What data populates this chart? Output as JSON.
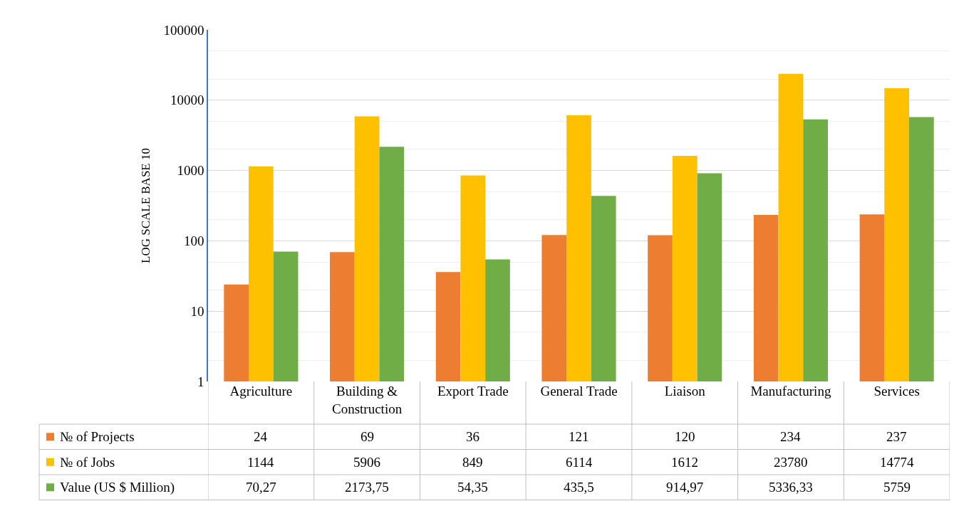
{
  "chart_data": {
    "type": "bar",
    "ylabel": "LOG SCALE BASE 10",
    "log": "y",
    "grid": "y",
    "legend": "bottom left",
    "ylim": [
      1,
      100000
    ],
    "yticks": [
      1,
      10,
      100,
      1000,
      10000,
      100000
    ],
    "categories": [
      "Agriculture",
      "Building & Construction",
      "Export Trade",
      "General Trade",
      "Liaison",
      "Manufacturing",
      "Services"
    ],
    "series": [
      {
        "name": "№ of Projects",
        "color": "#ed7d31",
        "values": [
          24,
          69,
          36,
          121,
          120,
          234,
          237
        ],
        "value_labels": [
          "24",
          "69",
          "36",
          "121",
          "120",
          "234",
          "237"
        ]
      },
      {
        "name": "№ of Jobs",
        "color": "#ffc000",
        "values": [
          1144,
          5906,
          849,
          6114,
          1612,
          23780,
          14774
        ],
        "value_labels": [
          "1144",
          "5906",
          "849",
          "6114",
          "1612",
          "23780",
          "14774"
        ]
      },
      {
        "name": "Value (US $ Million)",
        "color": "#70ad47",
        "values": [
          70.27,
          2173.75,
          54.35,
          435.5,
          914.97,
          5336.33,
          5759
        ],
        "value_labels": [
          "70,27",
          "2173,75",
          "54,35",
          "435,5",
          "914,97",
          "5336,33",
          "5759"
        ]
      }
    ]
  }
}
